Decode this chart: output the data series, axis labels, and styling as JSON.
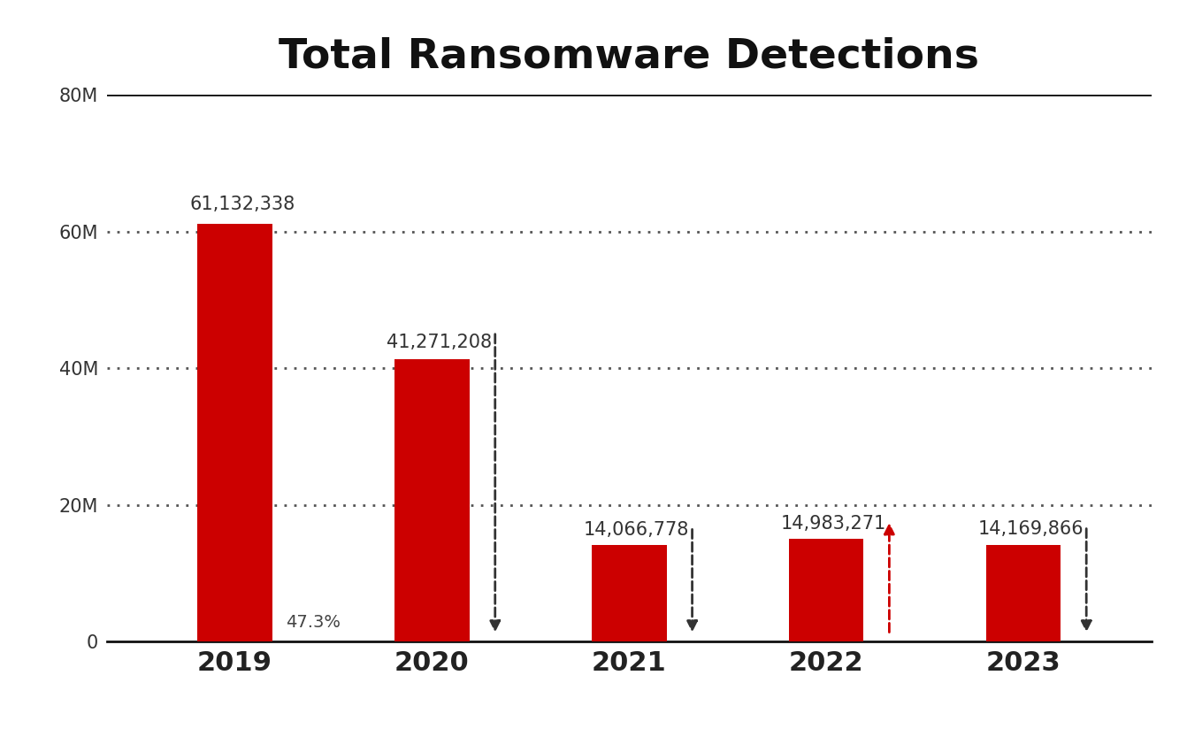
{
  "title": "Total Ransomware Detections",
  "years": [
    "2019",
    "2020",
    "2021",
    "2022",
    "2023"
  ],
  "values": [
    61132338,
    41271208,
    14066778,
    14983271,
    14169866
  ],
  "bar_color": "#cc0000",
  "value_labels": [
    "61,132,338",
    "41,271,208",
    "14,066,778",
    "14,983,271",
    "14,169,866"
  ],
  "pct_label": "47.3%",
  "ylim": [
    0,
    80000000
  ],
  "yticks": [
    0,
    20000000,
    40000000,
    60000000,
    80000000
  ],
  "ytick_labels": [
    "0",
    "20M",
    "40M",
    "60M",
    "80M"
  ],
  "background_color": "#ffffff",
  "title_fontsize": 34,
  "bar_width": 0.38,
  "arrow_info": [
    {
      "bar_idx": 1,
      "direction": "down",
      "color": "#333333"
    },
    {
      "bar_idx": 2,
      "direction": "down",
      "color": "#333333"
    },
    {
      "bar_idx": 3,
      "direction": "up",
      "color": "#cc0000"
    },
    {
      "bar_idx": 4,
      "direction": "down",
      "color": "#333333"
    }
  ]
}
